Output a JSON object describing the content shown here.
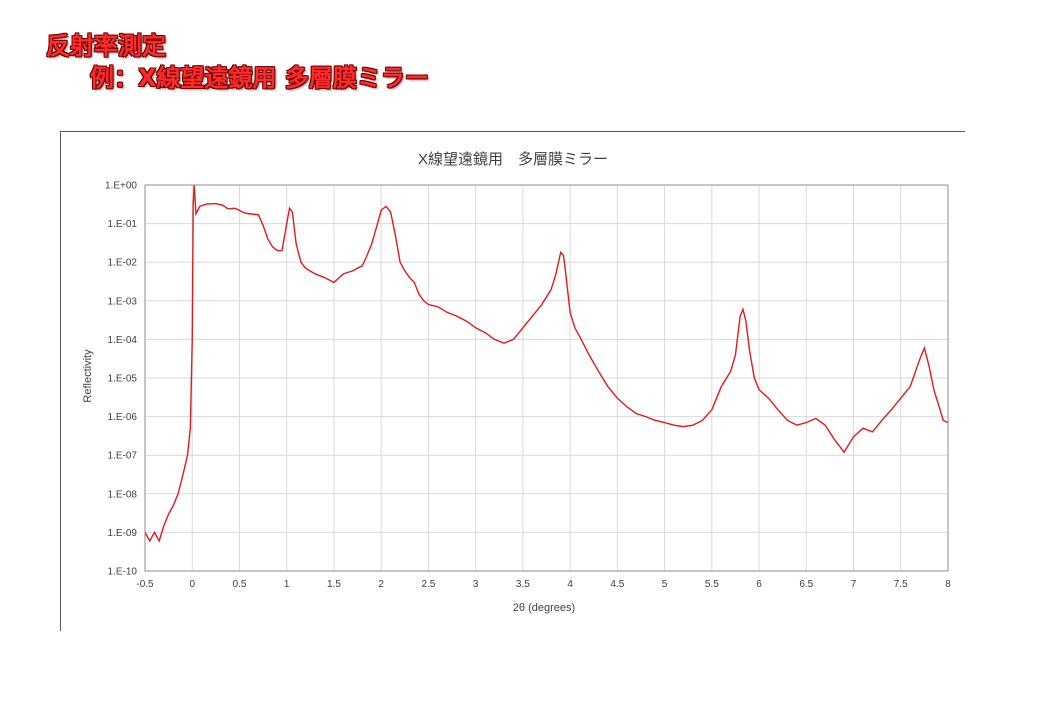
{
  "page": {
    "heading": "反射率測定",
    "subheading": "例：X線望遠鏡用 多層膜ミラー"
  },
  "chart_data": {
    "type": "line",
    "title": "X線望遠鏡用　多層膜ミラー",
    "xlabel": "2θ (degrees)",
    "ylabel": "Reflectivity",
    "xlim": [
      -0.5,
      8
    ],
    "y_scale": "log",
    "ylim": [
      1e-10,
      1
    ],
    "x_ticks": [
      "-0.5",
      "0",
      "0.5",
      "1",
      "1.5",
      "2",
      "2.5",
      "3",
      "3.5",
      "4",
      "4.5",
      "5",
      "5.5",
      "6",
      "6.5",
      "7",
      "7.5",
      "8"
    ],
    "y_ticks": [
      "1.E+00",
      "1.E-01",
      "1.E-02",
      "1.E-03",
      "1.E-04",
      "1.E-05",
      "1.E-06",
      "1.E-07",
      "1.E-08",
      "1.E-09",
      "1.E-10"
    ],
    "grid": true,
    "legend": "none",
    "line_color": "#e31a1c",
    "series": [
      {
        "points": [
          [
            -0.5,
            1e-09
          ],
          [
            -0.45,
            6e-10
          ],
          [
            -0.4,
            1e-09
          ],
          [
            -0.35,
            6e-10
          ],
          [
            -0.3,
            1.5e-09
          ],
          [
            -0.25,
            3e-09
          ],
          [
            -0.2,
            5e-09
          ],
          [
            -0.15,
            1e-08
          ],
          [
            -0.1,
            3e-08
          ],
          [
            -0.05,
            1e-07
          ],
          [
            -0.02,
            5e-07
          ],
          [
            0.0,
            0.0001
          ],
          [
            0.01,
            0.3
          ],
          [
            0.02,
            1.0
          ],
          [
            0.04,
            0.18
          ],
          [
            0.08,
            0.28
          ],
          [
            0.15,
            0.32
          ],
          [
            0.25,
            0.33
          ],
          [
            0.32,
            0.3
          ],
          [
            0.38,
            0.24
          ],
          [
            0.45,
            0.25
          ],
          [
            0.5,
            0.22
          ],
          [
            0.55,
            0.19
          ],
          [
            0.6,
            0.18
          ],
          [
            0.7,
            0.17
          ],
          [
            0.75,
            0.09
          ],
          [
            0.8,
            0.04
          ],
          [
            0.85,
            0.025
          ],
          [
            0.9,
            0.02
          ],
          [
            0.95,
            0.02
          ],
          [
            1.0,
            0.1
          ],
          [
            1.03,
            0.25
          ],
          [
            1.06,
            0.2
          ],
          [
            1.1,
            0.03
          ],
          [
            1.15,
            0.01
          ],
          [
            1.2,
            0.007
          ],
          [
            1.3,
            0.005
          ],
          [
            1.4,
            0.004
          ],
          [
            1.5,
            0.003
          ],
          [
            1.6,
            0.005
          ],
          [
            1.7,
            0.006
          ],
          [
            1.75,
            0.007
          ],
          [
            1.8,
            0.008
          ],
          [
            1.85,
            0.015
          ],
          [
            1.9,
            0.03
          ],
          [
            1.95,
            0.08
          ],
          [
            2.0,
            0.22
          ],
          [
            2.05,
            0.28
          ],
          [
            2.1,
            0.2
          ],
          [
            2.15,
            0.05
          ],
          [
            2.2,
            0.01
          ],
          [
            2.25,
            0.006
          ],
          [
            2.3,
            0.004
          ],
          [
            2.35,
            0.003
          ],
          [
            2.4,
            0.0015
          ],
          [
            2.45,
            0.001
          ],
          [
            2.5,
            0.0008
          ],
          [
            2.6,
            0.0007
          ],
          [
            2.7,
            0.0005
          ],
          [
            2.8,
            0.0004
          ],
          [
            2.9,
            0.0003
          ],
          [
            3.0,
            0.0002
          ],
          [
            3.1,
            0.00015
          ],
          [
            3.2,
            0.0001
          ],
          [
            3.3,
            8e-05
          ],
          [
            3.4,
            0.0001
          ],
          [
            3.5,
            0.0002
          ],
          [
            3.6,
            0.0004
          ],
          [
            3.7,
            0.0008
          ],
          [
            3.8,
            0.002
          ],
          [
            3.85,
            0.005
          ],
          [
            3.9,
            0.018
          ],
          [
            3.93,
            0.015
          ],
          [
            3.95,
            0.006
          ],
          [
            4.0,
            0.0005
          ],
          [
            4.05,
            0.0002
          ],
          [
            4.1,
            0.00012
          ],
          [
            4.2,
            4e-05
          ],
          [
            4.3,
            1.5e-05
          ],
          [
            4.4,
            6e-06
          ],
          [
            4.5,
            3e-06
          ],
          [
            4.6,
            1.8e-06
          ],
          [
            4.7,
            1.2e-06
          ],
          [
            4.8,
            1e-06
          ],
          [
            4.9,
            8e-07
          ],
          [
            5.0,
            7e-07
          ],
          [
            5.1,
            6e-07
          ],
          [
            5.2,
            5.5e-07
          ],
          [
            5.3,
            6e-07
          ],
          [
            5.4,
            8e-07
          ],
          [
            5.5,
            1.5e-06
          ],
          [
            5.55,
            3e-06
          ],
          [
            5.6,
            6e-06
          ],
          [
            5.7,
            1.5e-05
          ],
          [
            5.75,
            4e-05
          ],
          [
            5.8,
            0.0004
          ],
          [
            5.83,
            0.0006
          ],
          [
            5.86,
            0.0003
          ],
          [
            5.9,
            5e-05
          ],
          [
            5.95,
            1e-05
          ],
          [
            6.0,
            5e-06
          ],
          [
            6.1,
            3e-06
          ],
          [
            6.2,
            1.5e-06
          ],
          [
            6.3,
            8e-07
          ],
          [
            6.4,
            6e-07
          ],
          [
            6.5,
            7e-07
          ],
          [
            6.6,
            9e-07
          ],
          [
            6.7,
            6e-07
          ],
          [
            6.8,
            2.5e-07
          ],
          [
            6.9,
            1.2e-07
          ],
          [
            7.0,
            3e-07
          ],
          [
            7.1,
            5e-07
          ],
          [
            7.2,
            4e-07
          ],
          [
            7.3,
            8e-07
          ],
          [
            7.4,
            1.5e-06
          ],
          [
            7.5,
            3e-06
          ],
          [
            7.6,
            6e-06
          ],
          [
            7.7,
            3e-05
          ],
          [
            7.75,
            6e-05
          ],
          [
            7.8,
            2e-05
          ],
          [
            7.85,
            5e-06
          ],
          [
            7.9,
            2e-06
          ],
          [
            7.95,
            8e-07
          ],
          [
            8.0,
            7e-07
          ]
        ]
      }
    ]
  }
}
